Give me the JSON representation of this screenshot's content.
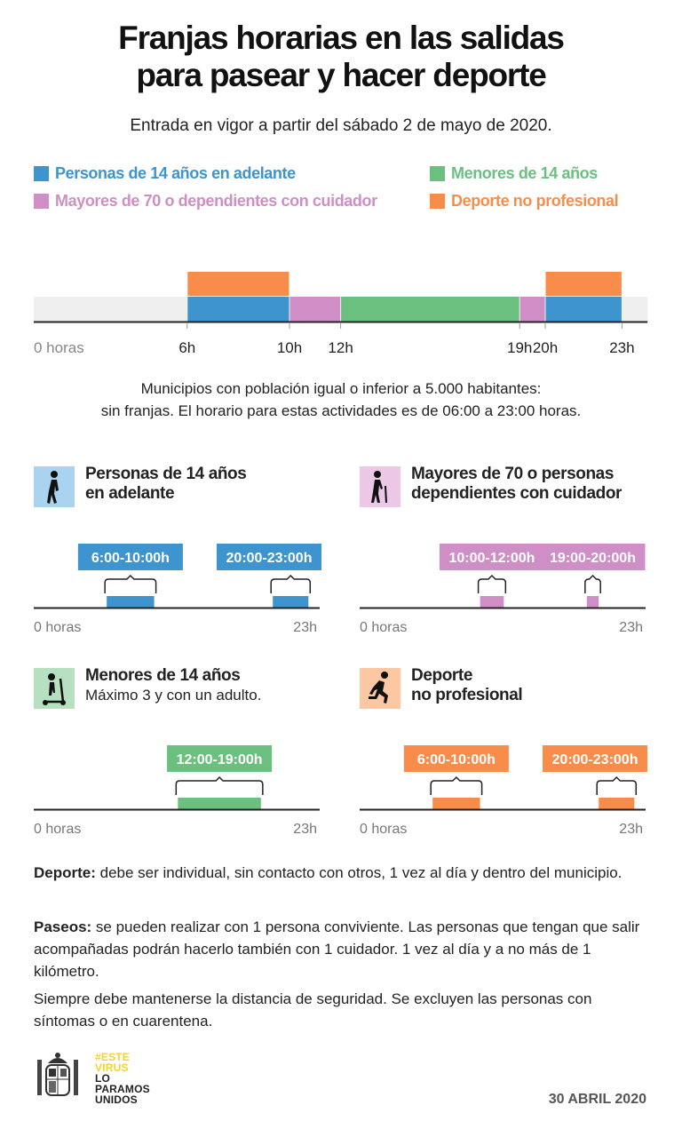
{
  "title": [
    "Franjas horarias en las salidas",
    "para pasear y hacer deporte"
  ],
  "subtitle": "Entrada en vigor a partir del sábado 2 de mayo de 2020.",
  "colors": {
    "adultos": "#3d94cf",
    "mayores": "#cf8ec6",
    "menores": "#6bc080",
    "deporte": "#f88d4b",
    "band": "#efefef"
  },
  "legend": [
    {
      "key": "adultos",
      "label": "Personas de 14 años en adelante"
    },
    {
      "key": "menores",
      "label": "Menores de 14 años"
    },
    {
      "key": "mayores",
      "label": "Mayores de 70 o dependientes con cuidador"
    },
    {
      "key": "deporte",
      "label": "Deporte no profesional"
    }
  ],
  "main_timeline": {
    "axis_start_label": "0 horas",
    "ticks": [
      {
        "h": 6,
        "label": "6h"
      },
      {
        "h": 10,
        "label": "10h"
      },
      {
        "h": 12,
        "label": "12h"
      },
      {
        "h": 19,
        "label": "19h"
      },
      {
        "h": 20,
        "label": "20h"
      },
      {
        "h": 23,
        "label": "23h"
      }
    ],
    "segments": [
      {
        "key": "adultos",
        "start": 6,
        "end": 10,
        "row": "bottom"
      },
      {
        "key": "mayores",
        "start": 10,
        "end": 12,
        "row": "bottom"
      },
      {
        "key": "menores",
        "start": 12,
        "end": 19,
        "row": "bottom"
      },
      {
        "key": "mayores",
        "start": 19,
        "end": 20,
        "row": "bottom"
      },
      {
        "key": "adultos",
        "start": 20,
        "end": 23,
        "row": "bottom"
      },
      {
        "key": "deporte",
        "start": 6,
        "end": 10,
        "row": "top"
      },
      {
        "key": "deporte",
        "start": 20,
        "end": 23,
        "row": "top"
      }
    ]
  },
  "note": [
    "Municipios con población igual o inferior a 5.000 habitantes:",
    "sin franjas. El horario para estas actividades es de 06:00 a 23:00 horas."
  ],
  "panels": [
    {
      "key": "adultos",
      "icon": "walking-person-icon",
      "title": [
        "Personas de 14 años",
        "en adelante"
      ],
      "subtitle": "",
      "ranges": [
        {
          "start": 6,
          "end": 10,
          "label": "6:00-10:00h"
        },
        {
          "start": 20,
          "end": 23,
          "label": "20:00-23:00h"
        }
      ],
      "axis_start": "0 horas",
      "axis_end": "23h"
    },
    {
      "key": "mayores",
      "icon": "elderly-person-cane-icon",
      "title": [
        "Mayores de 70 o personas",
        "dependientes con cuidador"
      ],
      "subtitle": "",
      "ranges": [
        {
          "start": 10,
          "end": 12,
          "label": "10:00-12:00h"
        },
        {
          "start": 19,
          "end": 20,
          "label": "19:00-20:00h"
        }
      ],
      "axis_start": "0 horas",
      "axis_end": "23h"
    },
    {
      "key": "menores",
      "icon": "child-scooter-icon",
      "title": [
        "Menores de 14 años"
      ],
      "subtitle": "Máximo 3 y con un adulto.",
      "ranges": [
        {
          "start": 12,
          "end": 19,
          "label": "12:00-19:00h"
        }
      ],
      "axis_start": "0 horas",
      "axis_end": "23h"
    },
    {
      "key": "deporte",
      "icon": "running-person-icon",
      "title": [
        "Deporte",
        "no profesional"
      ],
      "subtitle": "",
      "ranges": [
        {
          "start": 6,
          "end": 10,
          "label": "6:00-10:00h"
        },
        {
          "start": 20,
          "end": 23,
          "label": "20:00-23:00h"
        }
      ],
      "axis_start": "0 horas",
      "axis_end": "23h"
    }
  ],
  "rules": [
    {
      "bold": "Deporte:",
      "text": " debe ser individual, sin contacto con otros, 1 vez al día y dentro del municipio."
    },
    {
      "bold": "Paseos:",
      "text": " se pueden realizar con 1 persona conviviente. Las personas que tengan que salir acompañadas podrán hacerlo también con 1 cuidador. 1 vez al día y a no más de 1 kilómetro."
    },
    {
      "bold": "",
      "text": "Siempre debe mantenerse la distancia de seguridad. Se excluyen las personas con síntomas o en cuarentena."
    }
  ],
  "footer": {
    "slogan": [
      "#ESTE",
      "VIRUS",
      "LO",
      "PARAMOS",
      "UNIDOS"
    ],
    "slogan_colors": {
      "yellow": "#f5d32a",
      "black": "#111111"
    },
    "date": "30 ABRIL 2020"
  }
}
